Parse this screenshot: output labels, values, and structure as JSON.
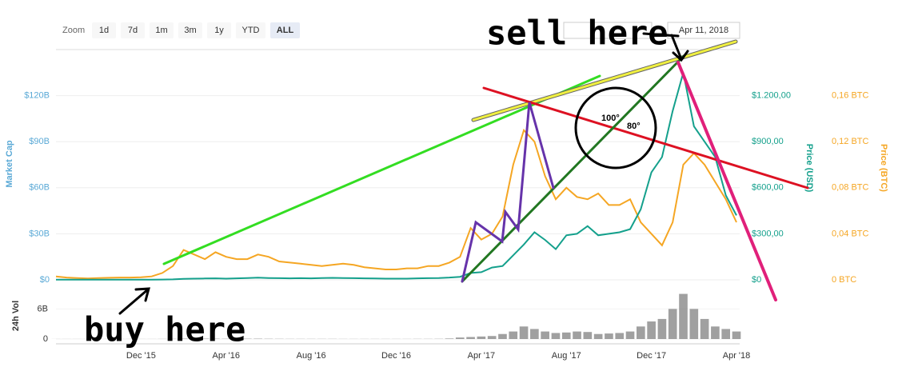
{
  "chart_data": {
    "type": "line",
    "ylabel": "Market Cap",
    "ylim": [
      0,
      150000000000
    ],
    "yticks": [
      {
        "value": 0,
        "label": "$0"
      },
      {
        "value": 30000000000,
        "label": "$30B"
      },
      {
        "value": 60000000000,
        "label": "$60B"
      },
      {
        "value": 90000000000,
        "label": "$90B"
      },
      {
        "value": 120000000000,
        "label": "$120B"
      }
    ],
    "y2lim": [
      0,
      1500
    ],
    "y2ticks": [
      {
        "value": 0,
        "label": "$0"
      },
      {
        "value": 300,
        "label": "$300,00"
      },
      {
        "value": 600,
        "label": "$600,00"
      },
      {
        "value": 900,
        "label": "$900,00"
      },
      {
        "value": 1200,
        "label": "$1.200,00"
      }
    ],
    "y3lim": [
      0,
      0.2
    ],
    "y3ticks": [
      {
        "value": 0,
        "label": "0 BTC"
      },
      {
        "value": 0.04,
        "label": "0,04 BTC"
      },
      {
        "value": 0.08,
        "label": "0,08 BTC"
      },
      {
        "value": 0.12,
        "label": "0,12 BTC"
      },
      {
        "value": 0.16,
        "label": "0,16 BTC"
      }
    ],
    "categories": [
      null,
      null,
      null,
      null,
      null,
      null,
      null,
      null,
      "Dec '15",
      null,
      null,
      null,
      null,
      null,
      null,
      null,
      "Apr '16",
      null,
      null,
      null,
      null,
      null,
      null,
      null,
      "Aug '16",
      null,
      null,
      null,
      null,
      null,
      null,
      null,
      "Dec '16",
      null,
      null,
      null,
      null,
      null,
      null,
      null,
      "Apr '17",
      null,
      null,
      null,
      null,
      null,
      null,
      null,
      "Aug '17",
      null,
      null,
      null,
      null,
      null,
      null,
      null,
      "Dec '17",
      null,
      null,
      null,
      null,
      null,
      null,
      null,
      "Apr '18"
    ],
    "series": [
      {
        "name": "Price (USD)",
        "color": "#14a08c",
        "axis": "y2",
        "values": [
          1,
          1,
          1,
          1,
          1,
          1,
          1,
          1,
          1,
          1,
          2,
          3,
          6,
          8,
          9,
          10,
          8,
          10,
          12,
          14,
          12,
          11,
          10,
          11,
          10,
          12,
          13,
          12,
          11,
          10,
          9,
          8,
          8,
          8,
          10,
          11,
          12,
          15,
          20,
          45,
          50,
          80,
          90,
          160,
          230,
          310,
          260,
          200,
          290,
          300,
          350,
          290,
          300,
          310,
          330,
          460,
          700,
          800,
          1100,
          1350,
          1000,
          900,
          800,
          550,
          420
        ]
      },
      {
        "name": "Price (BTC)",
        "color": "#f5a623",
        "axis": "y3",
        "values": [
          0.003,
          0.002,
          0.0015,
          0.0012,
          0.0015,
          0.0018,
          0.002,
          0.002,
          0.0022,
          0.003,
          0.006,
          0.012,
          0.026,
          0.022,
          0.018,
          0.024,
          0.02,
          0.018,
          0.018,
          0.022,
          0.02,
          0.016,
          0.015,
          0.014,
          0.013,
          0.012,
          0.013,
          0.014,
          0.013,
          0.011,
          0.01,
          0.009,
          0.009,
          0.01,
          0.01,
          0.012,
          0.012,
          0.015,
          0.02,
          0.045,
          0.035,
          0.04,
          0.055,
          0.1,
          0.13,
          0.12,
          0.09,
          0.07,
          0.08,
          0.072,
          0.07,
          0.075,
          0.065,
          0.065,
          0.07,
          0.05,
          0.04,
          0.03,
          0.05,
          0.1,
          0.11,
          0.1,
          0.085,
          0.07,
          0.05
        ]
      }
    ],
    "volume": {
      "name": "24h Vol",
      "color": "#777777",
      "ylim": [
        0,
        11000000000
      ],
      "yticks": [
        0,
        {
          "value": 6000000000,
          "label": "6B"
        }
      ],
      "values": [
        10000000.0,
        10000000.0,
        10000000.0,
        10000000.0,
        10000000.0,
        10000000.0,
        10000000.0,
        10000000.0,
        10000000.0,
        10000000.0,
        20000000.0,
        30000000.0,
        80000000.0,
        100000000.0,
        80000000.0,
        60000000.0,
        50000000.0,
        50000000.0,
        60000000.0,
        70000000.0,
        50000000.0,
        40000000.0,
        30000000.0,
        30000000.0,
        30000000.0,
        30000000.0,
        30000000.0,
        20000000.0,
        20000000.0,
        20000000.0,
        20000000.0,
        20000000.0,
        20000000.0,
        20000000.0,
        30000000.0,
        30000000.0,
        40000000.0,
        100000000.0,
        300000000.0,
        400000000.0,
        500000000.0,
        600000000.0,
        1000000000.0,
        1500000000.0,
        2500000000.0,
        2000000000.0,
        1500000000.0,
        1200000000.0,
        1300000000.0,
        1500000000.0,
        1400000000.0,
        1000000000.0,
        1100000000.0,
        1200000000.0,
        1500000000.0,
        2500000000.0,
        3500000000.0,
        4000000000.0,
        6000000000.0,
        9000000000.0,
        6000000000.0,
        4000000000.0,
        2500000000.0,
        2000000000.0,
        1500000000.0
      ]
    },
    "zoom": {
      "label": "Zoom",
      "buttons": [
        "1d",
        "7d",
        "1m",
        "3m",
        "1y",
        "YTD",
        "ALL"
      ],
      "active": 6
    },
    "date_to": "Apr 11, 2018",
    "annotations": {
      "sell": "sell here",
      "buy": "buy here",
      "angle_a": "100°",
      "angle_b": "80°"
    }
  }
}
